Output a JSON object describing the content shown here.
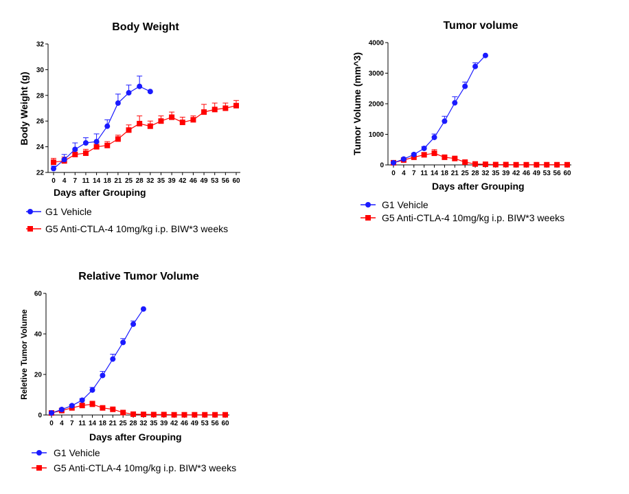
{
  "chart_data": [
    {
      "type": "line",
      "title": "Body Weight",
      "xlabel": "Days after Grouping",
      "ylabel": "Body Weight (g)",
      "ylim": [
        22,
        32
      ],
      "yticks": [
        22,
        24,
        26,
        28,
        30,
        32
      ],
      "xticks": [
        0,
        4,
        7,
        11,
        14,
        18,
        21,
        25,
        28,
        32,
        35,
        39,
        42,
        46,
        49,
        53,
        56,
        60
      ],
      "grid": false,
      "legend_placement": "bottom",
      "series": [
        {
          "name": "G1 Vehicle",
          "color": "#1a1aff",
          "marker": "circle",
          "x": [
            0,
            4,
            7,
            11,
            14,
            18,
            21,
            25,
            28,
            32
          ],
          "values": [
            22.3,
            23.0,
            23.8,
            24.3,
            24.4,
            25.6,
            27.4,
            28.2,
            28.7,
            28.3
          ],
          "errors": [
            0.2,
            0.4,
            0.5,
            0.4,
            0.6,
            0.5,
            0.7,
            0.6,
            0.8,
            0.0
          ]
        },
        {
          "name": "G5 Anti-CTLA-4 10mg/kg i.p. BIW*3 weeks",
          "color": "#ff0000",
          "marker": "square",
          "x": [
            0,
            4,
            7,
            11,
            14,
            18,
            21,
            25,
            28,
            32,
            35,
            39,
            42,
            46,
            49,
            53,
            56,
            60
          ],
          "values": [
            22.8,
            22.9,
            23.4,
            23.5,
            24.0,
            24.1,
            24.6,
            25.3,
            25.8,
            25.6,
            26.0,
            26.3,
            25.9,
            26.1,
            26.7,
            26.9,
            27.0,
            27.2
          ],
          "errors": [
            0.3,
            0.3,
            0.3,
            0.3,
            0.3,
            0.3,
            0.3,
            0.4,
            0.6,
            0.4,
            0.4,
            0.4,
            0.4,
            0.3,
            0.6,
            0.5,
            0.4,
            0.4
          ]
        }
      ]
    },
    {
      "type": "line",
      "title": "Tumor volume",
      "xlabel": "Days after Grouping",
      "ylabel": "Tumor Volume (mm^3)",
      "ylim": [
        0,
        4000
      ],
      "yticks": [
        0,
        1000,
        2000,
        3000,
        4000
      ],
      "xticks": [
        0,
        4,
        7,
        11,
        14,
        18,
        21,
        25,
        28,
        32,
        35,
        39,
        42,
        46,
        49,
        53,
        56,
        60
      ],
      "grid": false,
      "legend_placement": "bottom",
      "series": [
        {
          "name": "G1 Vehicle",
          "color": "#1a1aff",
          "marker": "circle",
          "x": [
            0,
            4,
            7,
            11,
            14,
            18,
            21,
            25,
            28,
            32
          ],
          "values": [
            70,
            190,
            340,
            540,
            900,
            1430,
            2030,
            2570,
            3220,
            3580
          ],
          "errors": [
            20,
            30,
            40,
            60,
            110,
            160,
            200,
            140,
            120,
            0
          ]
        },
        {
          "name": "G5 Anti-CTLA-4 10mg/kg i.p. BIW*3 weeks",
          "color": "#ff0000",
          "marker": "square",
          "x": [
            0,
            4,
            7,
            11,
            14,
            18,
            21,
            25,
            28,
            32,
            35,
            39,
            42,
            46,
            49,
            53,
            56,
            60
          ],
          "values": [
            70,
            160,
            250,
            330,
            380,
            250,
            210,
            90,
            30,
            20,
            10,
            10,
            5,
            5,
            5,
            5,
            5,
            5
          ],
          "errors": [
            20,
            30,
            40,
            60,
            120,
            50,
            40,
            20,
            10,
            10,
            5,
            5,
            5,
            5,
            5,
            5,
            5,
            5
          ]
        }
      ]
    },
    {
      "type": "line",
      "title": "Relative Tumor Volume",
      "xlabel": "Days after Grouping",
      "ylabel": "Reletive Tumor Volume",
      "ylim": [
        0,
        60
      ],
      "yticks": [
        0,
        20,
        40,
        60
      ],
      "xticks": [
        0,
        4,
        7,
        11,
        14,
        18,
        21,
        25,
        28,
        32,
        35,
        39,
        42,
        46,
        49,
        53,
        56,
        60
      ],
      "grid": false,
      "legend_placement": "bottom",
      "series": [
        {
          "name": "G1 Vehicle",
          "color": "#1a1aff",
          "marker": "circle",
          "x": [
            0,
            4,
            7,
            11,
            14,
            18,
            21,
            25,
            28,
            32
          ],
          "values": [
            1.0,
            2.7,
            4.6,
            7.3,
            12.3,
            19.5,
            27.6,
            35.8,
            44.8,
            52.3
          ],
          "errors": [
            0.2,
            0.4,
            0.6,
            0.8,
            1.3,
            2.0,
            2.4,
            1.9,
            1.6,
            0.0
          ]
        },
        {
          "name": "G5 Anti-CTLA-4 10mg/kg i.p. BIW*3 weeks",
          "color": "#ff0000",
          "marker": "square",
          "x": [
            0,
            4,
            7,
            11,
            14,
            18,
            21,
            25,
            28,
            32,
            35,
            39,
            42,
            46,
            49,
            53,
            56,
            60
          ],
          "values": [
            1.0,
            2.2,
            3.5,
            4.7,
            5.3,
            3.5,
            2.8,
            1.2,
            0.4,
            0.3,
            0.2,
            0.2,
            0.1,
            0.1,
            0.1,
            0.1,
            0.1,
            0.1
          ],
          "errors": [
            0.2,
            0.3,
            0.5,
            0.8,
            1.5,
            0.6,
            0.5,
            0.3,
            0.1,
            0.1,
            0.1,
            0.1,
            0.1,
            0.1,
            0.1,
            0.1,
            0.1,
            0.1
          ]
        }
      ]
    }
  ]
}
